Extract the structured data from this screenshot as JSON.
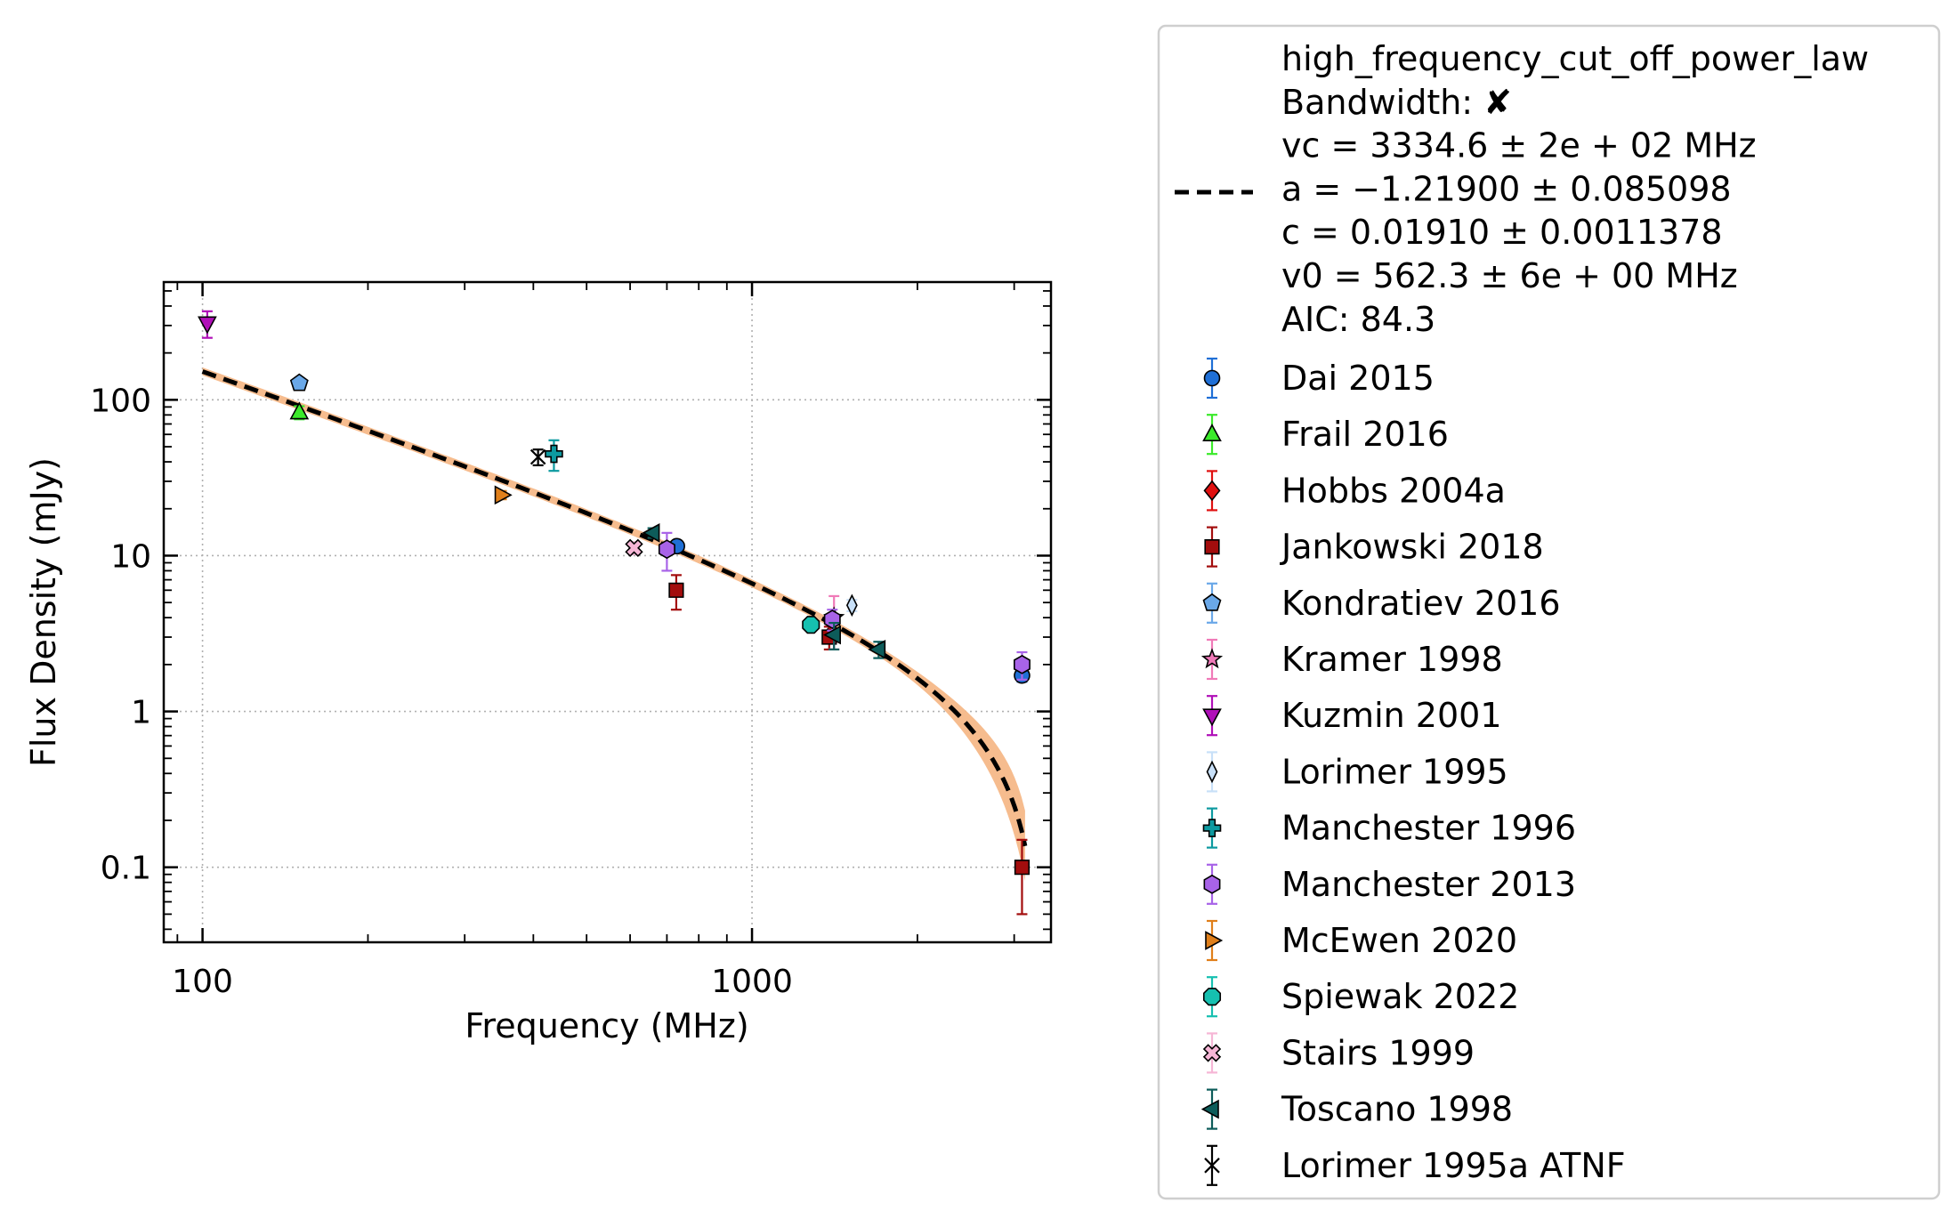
{
  "chart_data": {
    "type": "scatter",
    "title": "",
    "xlabel": "Frequency (MHz)",
    "ylabel": "Flux Density (mJy)",
    "xscale": "log",
    "yscale": "log",
    "xlim": [
      85,
      3500
    ],
    "ylim": [
      0.033,
      570
    ],
    "xticks": [
      {
        "value": 100,
        "label": "100"
      },
      {
        "value": 1000,
        "label": "1000"
      }
    ],
    "yticks": [
      {
        "value": 0.1,
        "label": "0.1"
      },
      {
        "value": 1,
        "label": "1"
      },
      {
        "value": 10,
        "label": "10"
      },
      {
        "value": 100,
        "label": "100"
      }
    ],
    "grid": true,
    "legend_position": "outside-right",
    "fit": {
      "model": "high_frequency_cut_off_power_law",
      "lines": [
        "high_frequency_cut_off_power_law",
        "Bandwidth: ✘",
        "vc = 3334.6 ± 2e + 02 MHz",
        "a = −1.21900 ± 0.085098",
        "c = 0.01910 ± 0.0011378",
        "v0 = 562.3 ± 6e + 00 MHz",
        "AIC: 84.3"
      ],
      "vc": 3334.6,
      "a": -1.219,
      "c": 0.0191,
      "v0": 562.3,
      "band_color": "#f5b888",
      "line_color": "#000000"
    },
    "series": [
      {
        "name": "Dai 2015",
        "marker": "circle",
        "color": "#1f6fd6",
        "points": [
          {
            "x": 730,
            "y": 11.5,
            "yerr": 0.6
          },
          {
            "x": 3100,
            "y": 1.7,
            "yerr": 0.15
          }
        ]
      },
      {
        "name": "Frail 2016",
        "marker": "triangle-up",
        "color": "#3bea2b",
        "points": [
          {
            "x": 150,
            "y": 83,
            "yerr": 8
          }
        ]
      },
      {
        "name": "Hobbs 2004a",
        "marker": "diamond",
        "color": "#e01010",
        "points": [
          {
            "x": 1400,
            "y": 3.2,
            "yerr": 0.4
          }
        ]
      },
      {
        "name": "Jankowski 2018",
        "marker": "square",
        "color": "#a30d0d",
        "points": [
          {
            "x": 728,
            "y": 6.0,
            "yerr": 1.5
          },
          {
            "x": 1382,
            "y": 3.0,
            "yerr": 0.5
          },
          {
            "x": 3100,
            "y": 0.1,
            "yerr": 0.05
          }
        ]
      },
      {
        "name": "Kondratiev 2016",
        "marker": "pentagon",
        "color": "#6aa8e8",
        "points": [
          {
            "x": 150,
            "y": 128,
            "yerr": 10
          }
        ]
      },
      {
        "name": "Kramer 1998",
        "marker": "star",
        "color": "#f07ab8",
        "points": [
          {
            "x": 1410,
            "y": 4.0,
            "yerr": 1.5
          }
        ]
      },
      {
        "name": "Kuzmin 2001",
        "marker": "triangle-down",
        "color": "#b010b8",
        "points": [
          {
            "x": 102,
            "y": 310,
            "yerr": 60
          }
        ]
      },
      {
        "name": "Lorimer 1995",
        "marker": "thin-diamond",
        "color": "#c8e0f8",
        "points": [
          {
            "x": 1520,
            "y": 4.8,
            "yerr": 0.4
          }
        ]
      },
      {
        "name": "Manchester 1996",
        "marker": "plus",
        "color": "#0d9aa0",
        "points": [
          {
            "x": 436,
            "y": 45,
            "yerr": 10
          }
        ]
      },
      {
        "name": "Manchester 2013",
        "marker": "hexagon",
        "color": "#a863e8",
        "points": [
          {
            "x": 700,
            "y": 11.0,
            "yerr": 3
          },
          {
            "x": 1400,
            "y": 3.9,
            "yerr": 0.6
          },
          {
            "x": 3100,
            "y": 2.0,
            "yerr": 0.4
          }
        ]
      },
      {
        "name": "McEwen 2020",
        "marker": "triangle-right",
        "color": "#e07f1a",
        "points": [
          {
            "x": 350,
            "y": 24.5,
            "yerr": 1.5
          }
        ]
      },
      {
        "name": "Spiewak 2022",
        "marker": "octagon",
        "color": "#16c0b0",
        "points": [
          {
            "x": 1280,
            "y": 3.6,
            "yerr": 0.3
          }
        ]
      },
      {
        "name": "Stairs 1999",
        "marker": "x-filled",
        "color": "#f6b6d6",
        "points": [
          {
            "x": 610,
            "y": 11.2,
            "yerr": 1
          }
        ]
      },
      {
        "name": "Toscano 1998",
        "marker": "triangle-left",
        "color": "#0d5c5a",
        "points": [
          {
            "x": 660,
            "y": 14,
            "yerr": 1
          },
          {
            "x": 1410,
            "y": 3.1,
            "yerr": 0.6
          },
          {
            "x": 1700,
            "y": 2.5,
            "yerr": 0.3
          }
        ]
      },
      {
        "name": "Lorimer 1995a ATNF",
        "marker": "thin-x",
        "color": "#000000",
        "points": [
          {
            "x": 408,
            "y": 43,
            "yerr": 5
          }
        ]
      }
    ]
  }
}
